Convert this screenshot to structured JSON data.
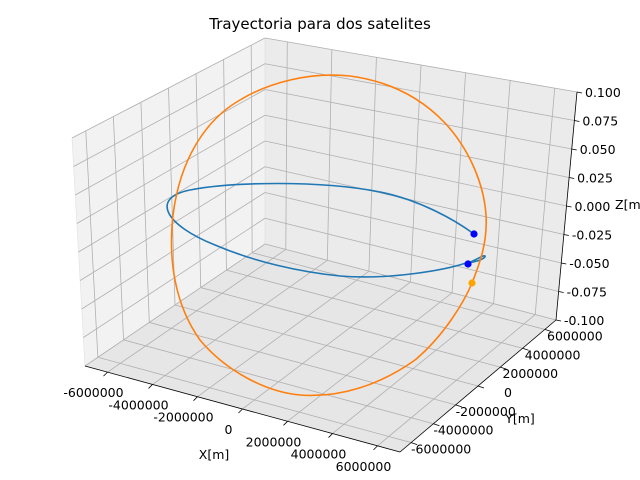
{
  "chart_data": {
    "type": "line",
    "projection": "3d",
    "title": "Trayectoria para dos satelites",
    "xlabel": "X[m]",
    "ylabel": "Y[m]",
    "zlabel": "Z[m]",
    "xlim": [
      -7000000,
      7000000
    ],
    "ylim": [
      -7000000,
      7000000
    ],
    "zlim": [
      -0.1,
      0.1
    ],
    "x_ticks": [
      "-6000000",
      "-4000000",
      "-2000000",
      "0",
      "2000000",
      "4000000",
      "6000000"
    ],
    "y_ticks": [
      "-6000000",
      "-4000000",
      "-2000000",
      "0",
      "2000000",
      "4000000",
      "6000000"
    ],
    "z_ticks": [
      "-0.100",
      "-0.075",
      "-0.050",
      "-0.025",
      "0.000",
      "0.025",
      "0.050",
      "0.075",
      "0.100"
    ],
    "grid": true,
    "series": [
      {
        "color": "#1f77b4",
        "description": "orbit 1 (elongated ellipse)",
        "current_marker": {
          "x": 6100000,
          "y": 0,
          "z": 0,
          "color": "#0000ff"
        }
      },
      {
        "color": "#ff7f0e",
        "description": "orbit 2 (large circle)",
        "current_marker": {
          "x": 6300000,
          "y": -1000000,
          "z": 0,
          "color": "#ffa500"
        }
      }
    ],
    "extra_markers": [
      {
        "x": 3700000,
        "y": -3100000,
        "z": 0,
        "color": "#0000ff"
      }
    ]
  }
}
